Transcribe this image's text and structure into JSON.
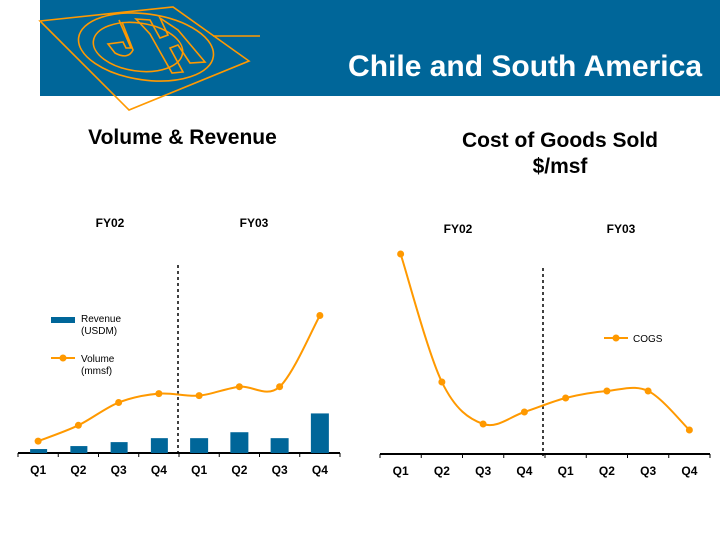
{
  "slide_title": "Chile and South America",
  "chart_data": [
    {
      "type": "bar+line",
      "title": "Volume & Revenue",
      "groups": [
        "FY02",
        "FY03"
      ],
      "categories": [
        "Q1",
        "Q2",
        "Q3",
        "Q4",
        "Q1",
        "Q2",
        "Q3",
        "Q4"
      ],
      "series": [
        {
          "name": "Revenue (USDM)",
          "type": "bar",
          "color": "#006699",
          "values": [
            4,
            7,
            11,
            15,
            15,
            21,
            15,
            40
          ]
        },
        {
          "name": "Volume (mmsf)",
          "type": "line",
          "color": "#FF9900",
          "values": [
            12,
            28,
            51,
            60,
            58,
            67,
            67,
            139
          ]
        }
      ],
      "legend_labels": [
        [
          "Revenue",
          "(USDM)"
        ],
        [
          "Volume",
          "(mmsf)"
        ]
      ],
      "ylim": [
        0,
        190
      ],
      "legend": "left"
    },
    {
      "type": "line",
      "title_lines": [
        "Cost of Goods Sold",
        "$/msf"
      ],
      "groups": [
        "FY02",
        "FY03"
      ],
      "categories": [
        "Q1",
        "Q2",
        "Q3",
        "Q4",
        "Q1",
        "Q2",
        "Q3",
        "Q4"
      ],
      "series": [
        {
          "name": "COGS",
          "color": "#FF9900",
          "values": [
            200,
            72,
            30,
            42,
            56,
            63,
            63,
            24
          ]
        }
      ],
      "ylim": [
        0,
        210
      ],
      "legend": "right"
    }
  ]
}
